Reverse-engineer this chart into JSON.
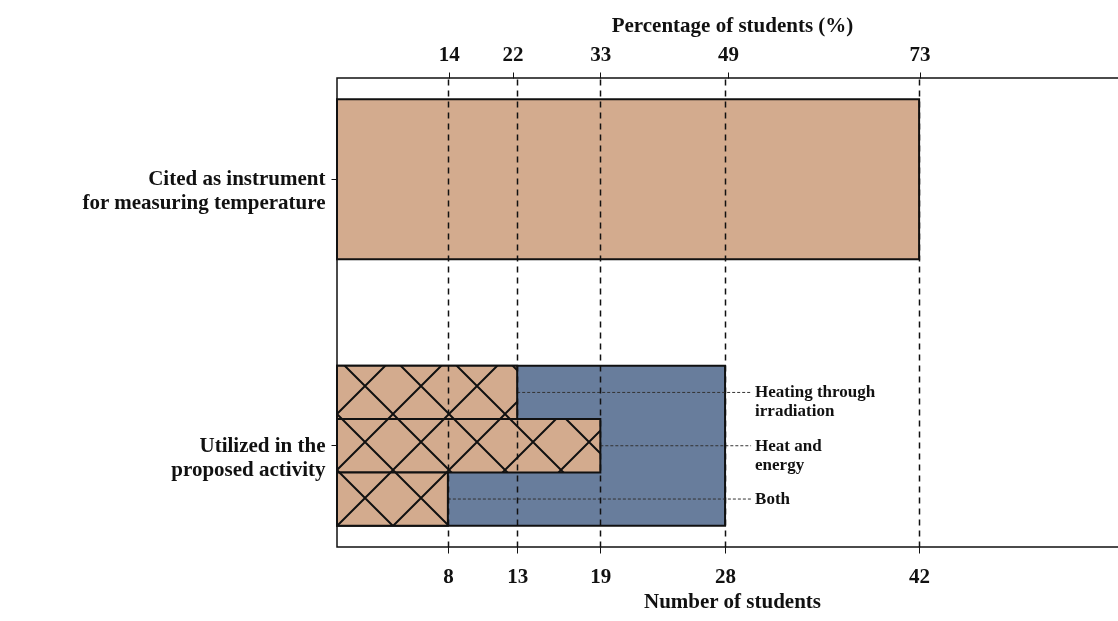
{
  "chart_data": {
    "type": "bar",
    "orientation": "horizontal",
    "categories": [
      "Cited as instrument\nfor measuring temperature",
      "Utilized in the\nproposed activity"
    ],
    "series": [
      {
        "color": "#d3ab8e",
        "values": [
          42,
          null
        ]
      },
      {
        "color": "#687d9c",
        "values": [
          null,
          28
        ]
      },
      {
        "name": "Heating through\nirradiation",
        "color": "#d3ab8e",
        "values": [
          null,
          13
        ]
      },
      {
        "name": "Heat and\nenergy",
        "color": "#d3ab8e",
        "values": [
          null,
          19
        ]
      },
      {
        "name": "Both",
        "color": "#d3ab8e",
        "values": [
          null,
          8
        ]
      }
    ],
    "xlabel": "Number of students",
    "x2label": "Percentage of students (%)",
    "xlim": [
      0,
      57
    ],
    "xticks": [
      8,
      13,
      19,
      28,
      42
    ],
    "x2lim": [
      0,
      99
    ],
    "x2ticks": [
      14,
      22,
      33,
      49,
      73
    ],
    "grid": "x"
  }
}
